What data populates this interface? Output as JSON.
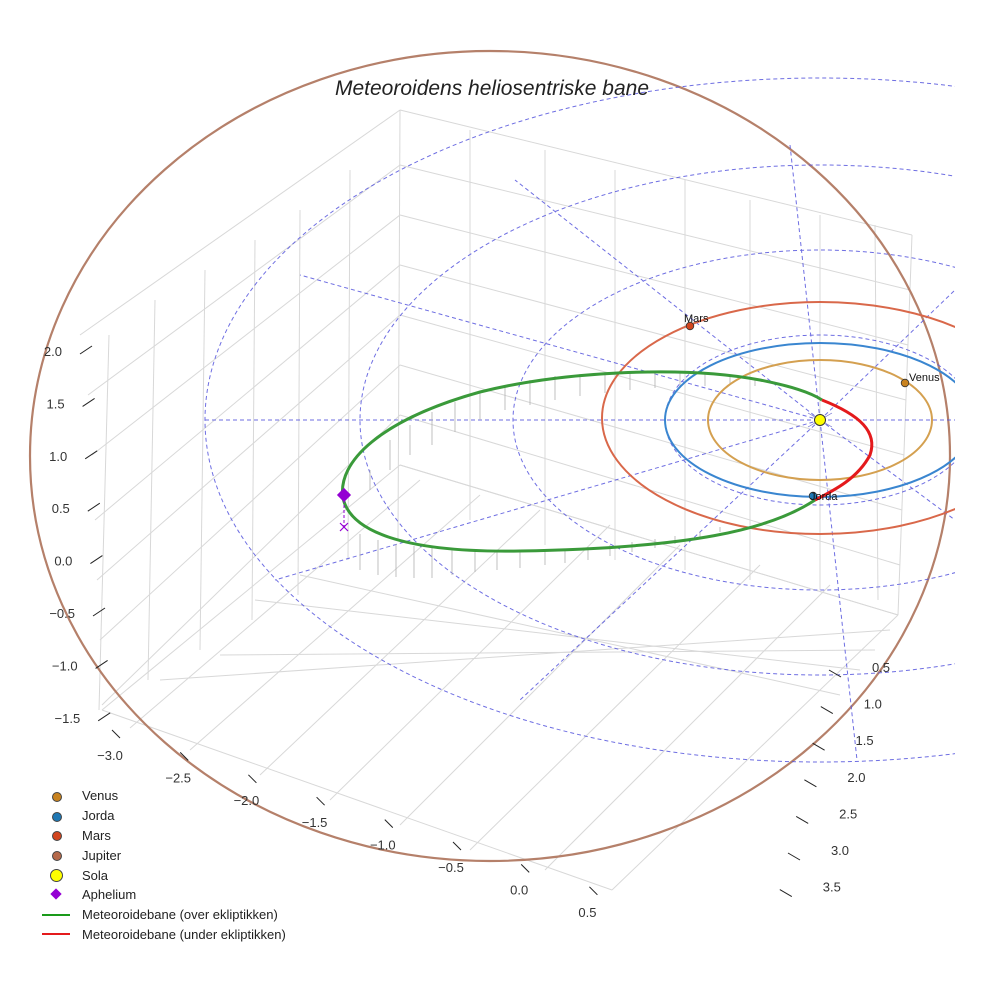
{
  "chart_data": {
    "type": "3d-orbit",
    "title": "Meteoroidens heliosentriske bane",
    "z_ticks": [
      "2.0",
      "1.5",
      "1.0",
      "0.5",
      "0.0",
      "−0.5",
      "−1.0",
      "−1.5"
    ],
    "x_ticks": [
      "−3.0",
      "−2.5",
      "−2.0",
      "−1.5",
      "−1.0",
      "−0.5",
      "0.0",
      "0.5"
    ],
    "y_ticks": [
      "0.5",
      "1.0",
      "1.5",
      "2.0",
      "2.5",
      "3.0",
      "3.5"
    ],
    "bodies": [
      {
        "name": "Venus",
        "label": "Venus",
        "color": "#c8821e"
      },
      {
        "name": "Jorda",
        "label": "Jorda",
        "color": "#1f78b4"
      },
      {
        "name": "Mars",
        "label": "Mars",
        "color": "#d2451e"
      },
      {
        "name": "Jupiter",
        "label": "",
        "color": "#b5694a"
      },
      {
        "name": "Sola",
        "label": "",
        "color": "#ffff00"
      }
    ],
    "legend": [
      {
        "label": "Venus",
        "marker": "dot",
        "color": "#c8821e"
      },
      {
        "label": "Jorda",
        "marker": "dot",
        "color": "#1f78b4"
      },
      {
        "label": "Mars",
        "marker": "dot",
        "color": "#d2451e"
      },
      {
        "label": "Jupiter",
        "marker": "dot",
        "color": "#b5694a"
      },
      {
        "label": "Sola",
        "marker": "bigdot",
        "color": "#ffff00"
      },
      {
        "label": "Aphelium",
        "marker": "diamond",
        "color": "#9400d3"
      },
      {
        "label": "Meteoroidebane (over ekliptikken)",
        "marker": "line",
        "color": "#1a9a1a"
      },
      {
        "label": "Meteoroidebane (under ekliptikken)",
        "marker": "line",
        "color": "#e41a1c"
      }
    ],
    "orbit_colors": {
      "venus": "#d4a050",
      "earth": "#3a86d0",
      "mars": "#d9684a",
      "jupiter": "#b5806a",
      "grid": "#5555dd",
      "above": "#3a9a3a",
      "below": "#e41a1c",
      "aphelion": "#9400d3"
    }
  }
}
